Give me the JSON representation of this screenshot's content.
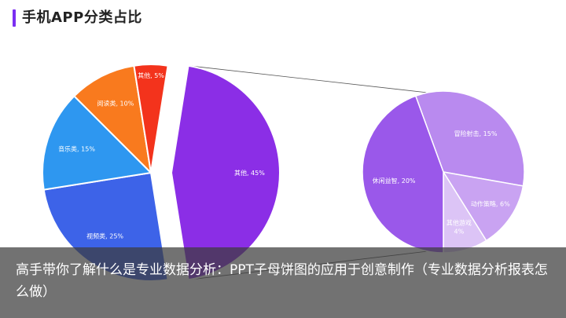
{
  "page_title": "手机APP分类占比",
  "caption": "高手带你了解什么是专业数据分析：PPT子母饼图的应用于创意制作（专业数据分析报表怎么做）",
  "colors": {
    "accent": "#7b2ff2",
    "video": "#3d63e8",
    "music": "#2e97f0",
    "reading": "#f97a1e",
    "other_small": "#f3331c",
    "other_big": "#8b2ee6",
    "casual": "#9a58ea",
    "adventure": "#b98aef",
    "action": "#c9a3f2",
    "other_games": "#dcc4f6"
  },
  "chart_data": {
    "type": "pie",
    "subtype": "pie-of-pie",
    "title": "手机APP分类占比",
    "main_pie": {
      "slices": [
        {
          "label": "其他",
          "value": 45,
          "display": "其他, 45%",
          "color_key": "other_big",
          "exploded": true
        },
        {
          "label": "视频类",
          "value": 25,
          "display": "视频类, 25%",
          "color_key": "video"
        },
        {
          "label": "音乐类",
          "value": 15,
          "display": "音乐类, 15%",
          "color_key": "music"
        },
        {
          "label": "阅读类",
          "value": 10,
          "display": "阅读类, 10%",
          "color_key": "reading"
        },
        {
          "label": "其他",
          "value": 5,
          "display": "其他, 5%",
          "color_key": "other_small"
        }
      ]
    },
    "sub_pie": {
      "parent": "其他",
      "slices": [
        {
          "label": "冒险射击",
          "value": 15,
          "display": "冒险射击, 15%",
          "color_key": "adventure"
        },
        {
          "label": "动作策略",
          "value": 6,
          "display": "动作策略, 6%",
          "color_key": "action"
        },
        {
          "label": "其他游戏",
          "value": 4,
          "display_lines": [
            "其他游戏",
            "4%"
          ],
          "color_key": "other_games"
        },
        {
          "label": "休闲益智",
          "value": 20,
          "display": "休闲益智, 20%",
          "color_key": "casual"
        }
      ]
    }
  }
}
